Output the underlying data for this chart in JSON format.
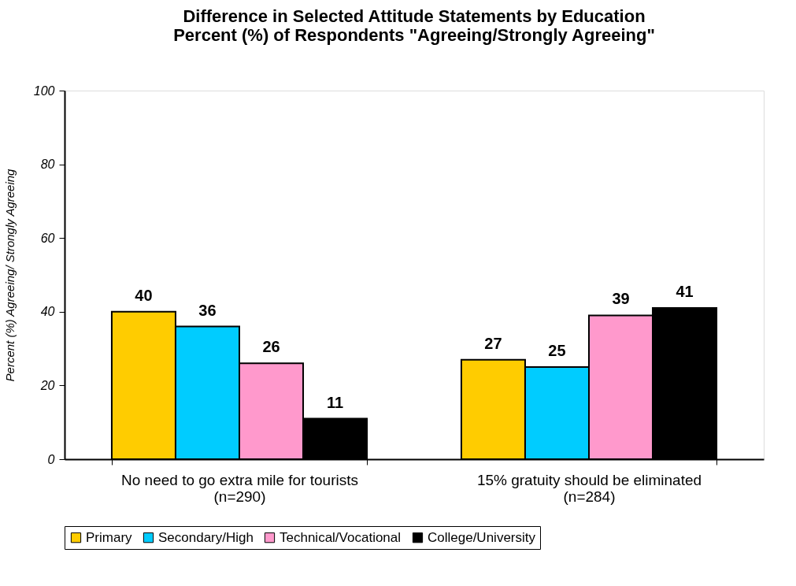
{
  "chart_data": {
    "type": "bar",
    "title": [
      "Difference in Selected Attitude Statements by Education",
      "Percent (%) of Respondents \"Agreeing/Strongly Agreeing\""
    ],
    "ylabel": "Percent (%) Agreeing/ Strongly Agreeing",
    "categories": [
      "No need to go extra mile for tourists\n(n=290)",
      "15% gratuity should be eliminated\n(n=284)"
    ],
    "series": [
      {
        "name": "Primary",
        "color": "#ffcc00",
        "values": [
          40,
          27
        ]
      },
      {
        "name": "Secondary/High",
        "color": "#00ccff",
        "values": [
          36,
          25
        ]
      },
      {
        "name": "Technical/Vocational",
        "color": "#ff99cc",
        "values": [
          26,
          39
        ]
      },
      {
        "name": "College/University",
        "color": "#000000",
        "values": [
          11,
          41
        ]
      }
    ],
    "ylim": [
      0,
      100
    ],
    "yticks": [
      0,
      20,
      40,
      60,
      80,
      100
    ],
    "data_labels": true,
    "grid": false,
    "legend": "bottom"
  }
}
